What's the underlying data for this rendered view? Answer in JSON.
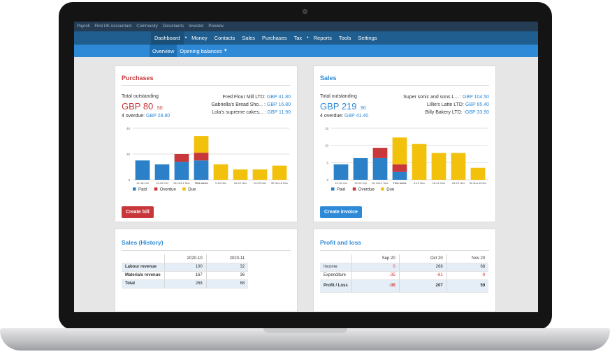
{
  "topbar": {
    "items": [
      "Payroll",
      "Find UK Accountant",
      "Community",
      "Documents",
      "Investor",
      "Preview"
    ]
  },
  "nav": {
    "items": [
      "Dashboard",
      "Money",
      "Contacts",
      "Sales",
      "Purchases",
      "Tax",
      "Reports",
      "Tools",
      "Settings"
    ],
    "active": "Dashboard"
  },
  "subnav": {
    "overview": "Overview",
    "opening_balances": "Opening balances"
  },
  "colors": {
    "paid": "#2b80c8",
    "overdue": "#c8373a",
    "due": "#f2c10c",
    "purchases_accent": "#c8373a",
    "sales_accent": "#2e8ad6"
  },
  "purchases": {
    "title": "Purchases",
    "total_label": "Total outstanding",
    "total_main": "GBP 80",
    "total_cents": ".50",
    "overdue_label": "4 overdue:",
    "overdue_value": "GBP 28.80",
    "suppliers": [
      {
        "name": "Fred Flour Mill LTD:",
        "value": "GBP 41.80"
      },
      {
        "name": "Gabriella's Bread Sho... :",
        "value": "GBP 16.80"
      },
      {
        "name": "Lola's supreme cakes... :",
        "value": "GBP 11.90"
      }
    ],
    "button": "Create bill",
    "legend": {
      "paid": "Paid",
      "overdue": "Overdue",
      "due": "Due"
    }
  },
  "sales": {
    "title": "Sales",
    "total_label": "Total outstanding",
    "total_main": "GBP 219",
    "total_cents": ".90",
    "overdue_label": "4 overdue:",
    "overdue_value": "GBP 41.40",
    "customers": [
      {
        "name": "Super sonic and sons L... :",
        "value": "GBP 104.50"
      },
      {
        "name": "Lillie's Latte LTD:",
        "value": "GBP 65.40"
      },
      {
        "name": "Billy Bakery LTD:",
        "value": "-GBP 33.90"
      }
    ],
    "button": "Create invoice",
    "legend": {
      "paid": "Paid",
      "overdue": "Overdue",
      "due": "Due"
    }
  },
  "chart_data": [
    {
      "type": "bar",
      "title": "Purchases",
      "categories": [
        "12-18 Oct",
        "19-25 Oct",
        "26 Oct-1 Nov",
        "This week",
        "9-15 Nov",
        "16-22 Nov",
        "23-29 Nov",
        "30 Nov-6 Dec"
      ],
      "ylim": [
        0,
        40
      ],
      "yticks": [
        0,
        20,
        40
      ],
      "series": [
        {
          "name": "Paid",
          "values": [
            15,
            12,
            14,
            15,
            0,
            0,
            0,
            0
          ]
        },
        {
          "name": "Overdue",
          "values": [
            0,
            0,
            6,
            6,
            0,
            0,
            0,
            0
          ]
        },
        {
          "name": "Due",
          "values": [
            0,
            0,
            0,
            13,
            12,
            8,
            8,
            11
          ]
        }
      ],
      "legend": "bottom-left",
      "grid": true
    },
    {
      "type": "bar",
      "title": "Sales",
      "categories": [
        "12-18 Oct",
        "19-25 Oct",
        "26 Oct-1 Nov",
        "This week",
        "9-15 Nov",
        "16-22 Nov",
        "23-29 Nov",
        "30 Nov-6 Dec"
      ],
      "ylim": [
        0,
        15
      ],
      "yticks": [
        0,
        5,
        10,
        15
      ],
      "series": [
        {
          "name": "Paid",
          "values": [
            4.5,
            6.3,
            6.3,
            2.3,
            0,
            0,
            0,
            0
          ]
        },
        {
          "name": "Overdue",
          "values": [
            0,
            0,
            3,
            2.2,
            0,
            0,
            0,
            0
          ]
        },
        {
          "name": "Due",
          "values": [
            0,
            0,
            0,
            7.8,
            10.4,
            7.8,
            7.8,
            3.5
          ]
        }
      ],
      "legend": "bottom-left",
      "grid": true
    }
  ],
  "sales_history": {
    "title": "Sales (History)",
    "columns": [
      "2020-10",
      "2020-11"
    ],
    "rows": [
      {
        "label": "Labour revenue",
        "values": [
          "100",
          "32"
        ]
      },
      {
        "label": "Materials revenue",
        "values": [
          "167",
          "36"
        ]
      },
      {
        "label": "Total",
        "values": [
          "268",
          "68"
        ]
      }
    ]
  },
  "profit_loss": {
    "title": "Profit and loss",
    "columns": [
      "Sep 20",
      "Oct 20",
      "Nov 20"
    ],
    "rows": [
      {
        "label": "Income",
        "values": [
          "0",
          "268",
          "68"
        ]
      },
      {
        "label": "Expenditure",
        "values": [
          "-35",
          "-61",
          "-9"
        ]
      },
      {
        "label": "Profit / Loss",
        "values": [
          "-35",
          "207",
          "59"
        ]
      }
    ]
  }
}
